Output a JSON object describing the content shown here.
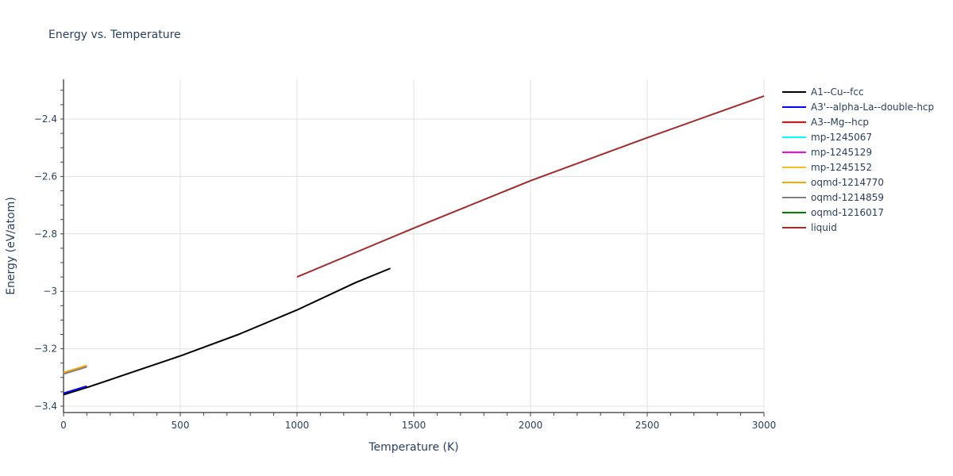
{
  "title": "Energy vs. Temperature",
  "chart_data": {
    "type": "line",
    "title": "Energy vs. Temperature",
    "xlabel": "Temperature (K)",
    "ylabel": "Energy (eV/atom)",
    "xlim": [
      0,
      3000
    ],
    "ylim": [
      -3.42,
      -2.26
    ],
    "x_ticks": [
      0,
      500,
      1000,
      1500,
      2000,
      2500,
      3000
    ],
    "x_tick_labels": [
      "0",
      "500",
      "1000",
      "1500",
      "2000",
      "2500",
      "3000"
    ],
    "y_ticks": [
      -3.4,
      -3.2,
      -3.0,
      -2.8,
      -2.6,
      -2.4
    ],
    "y_tick_labels": [
      "−3.4",
      "−3.2",
      "−3",
      "−2.8",
      "−2.6",
      "−2.4"
    ],
    "grid": true,
    "legend_position": "right",
    "series": [
      {
        "name": "A1--Cu--fcc",
        "color": "#000000",
        "x": [
          0,
          100,
          300,
          500,
          750,
          1000,
          1250,
          1400
        ],
        "y": [
          -3.36,
          -3.335,
          -3.28,
          -3.225,
          -3.15,
          -3.065,
          -2.97,
          -2.92
        ]
      },
      {
        "name": "A3'--alpha-La--double-hcp",
        "color": "#0000ff",
        "x": [
          0,
          100
        ],
        "y": [
          -3.355,
          -3.33
        ]
      },
      {
        "name": "A3--Mg--hcp",
        "color": "#ff0000",
        "x": [],
        "y": []
      },
      {
        "name": "mp-1245067",
        "color": "#00ffff",
        "x": [],
        "y": []
      },
      {
        "name": "mp-1245129",
        "color": "#ff00ff",
        "x": [],
        "y": []
      },
      {
        "name": "mp-1245152",
        "color": "#f0c020",
        "x": [],
        "y": []
      },
      {
        "name": "oqmd-1214770",
        "color": "#ffa500",
        "x": [
          0,
          100
        ],
        "y": [
          -3.283,
          -3.258
        ]
      },
      {
        "name": "oqmd-1214859",
        "color": "#808080",
        "x": [
          0,
          100
        ],
        "y": [
          -3.288,
          -3.263
        ]
      },
      {
        "name": "oqmd-1216017",
        "color": "#008000",
        "x": [],
        "y": []
      },
      {
        "name": "liquid",
        "color": "#a52a2a",
        "x": [
          1000,
          1500,
          2000,
          2500,
          3000
        ],
        "y": [
          -2.95,
          -2.78,
          -2.615,
          -2.465,
          -2.32
        ]
      }
    ]
  }
}
